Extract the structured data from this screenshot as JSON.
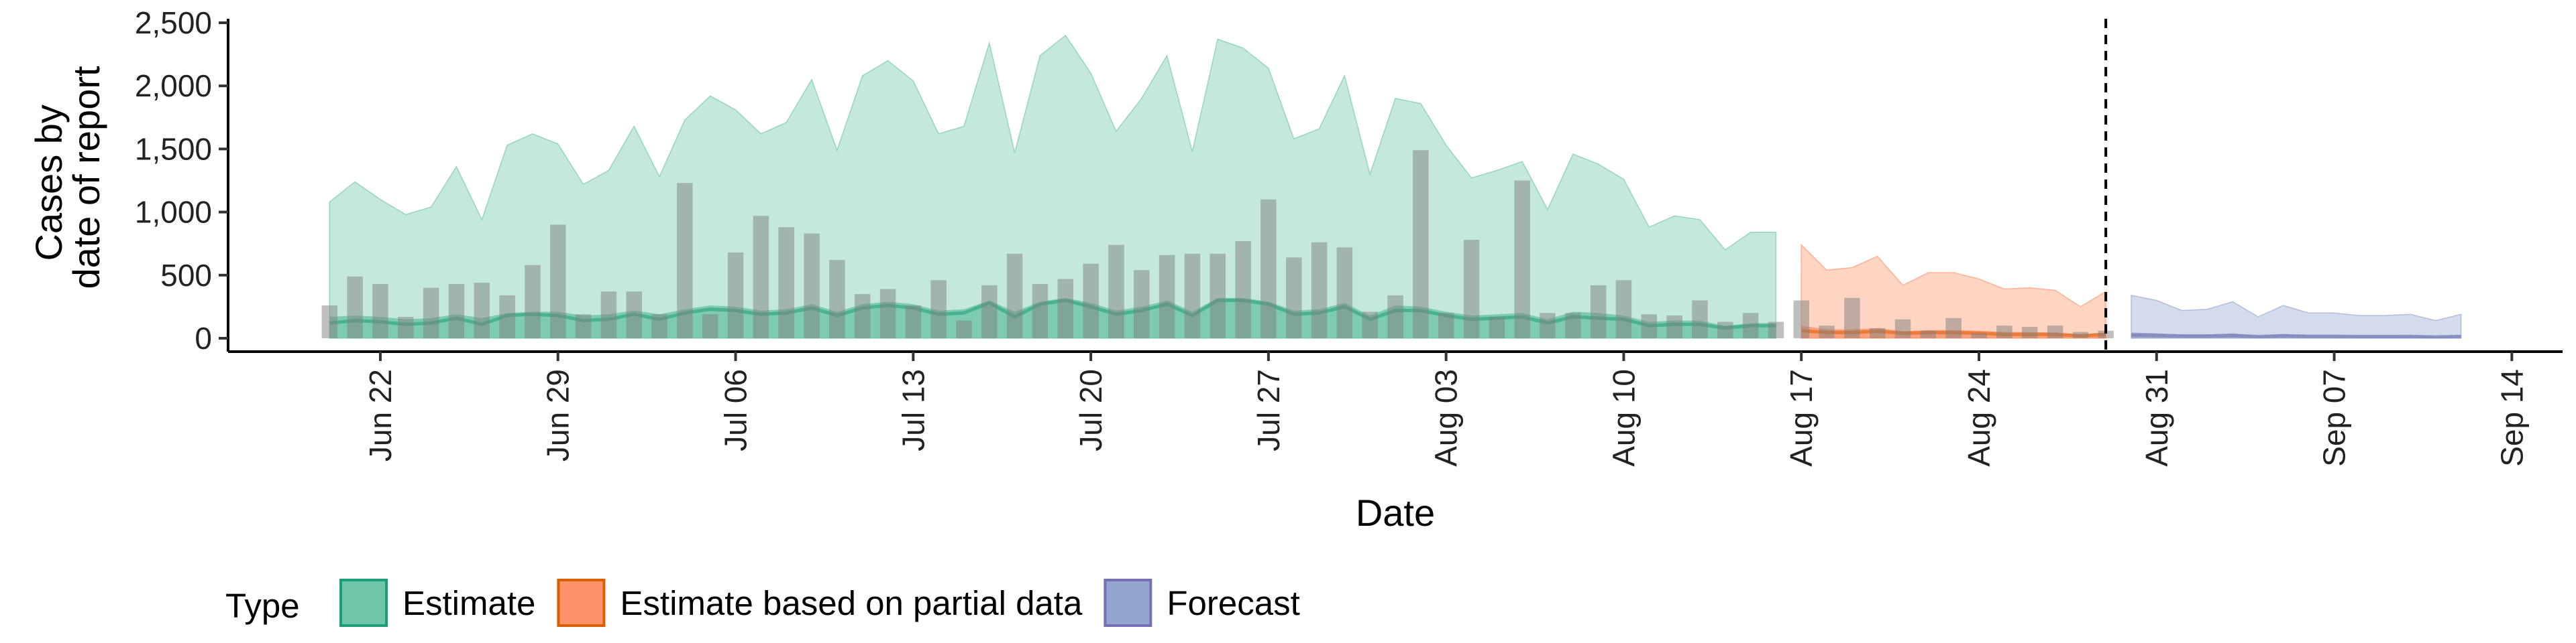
{
  "chart_data": {
    "type": "area",
    "xlabel": "Date",
    "ylabel": [
      "Cases by",
      "date of report"
    ],
    "ylim": [
      0,
      2500
    ],
    "xlim": [
      "2020-06-16",
      "2020-09-16"
    ],
    "y_ticks": [
      0,
      500,
      1000,
      1500,
      2000,
      2500
    ],
    "y_tick_labels": [
      "0",
      "500",
      "1,000",
      "1,500",
      "2,000",
      "2,500"
    ],
    "x_ticks": [
      "2020-06-22",
      "2020-06-29",
      "2020-07-06",
      "2020-07-13",
      "2020-07-20",
      "2020-07-27",
      "2020-08-03",
      "2020-08-10",
      "2020-08-17",
      "2020-08-24",
      "2020-08-31",
      "2020-09-07",
      "2020-09-14"
    ],
    "x_tick_labels": [
      "Jun 22",
      "Jun 29",
      "Jul 06",
      "Jul 13",
      "Jul 20",
      "Jul 27",
      "Aug 03",
      "Aug 10",
      "Aug 17",
      "Aug 24",
      "Aug 31",
      "Sep 07",
      "Sep 14"
    ],
    "grid": false,
    "legend": {
      "title": "Type",
      "position": "bottom",
      "items": [
        {
          "label": "Estimate",
          "fill": "#66c2a5",
          "border": "#1b9e77"
        },
        {
          "label": "Estimate based on partial data",
          "fill": "#fc8d62",
          "border": "#d95f02"
        },
        {
          "label": "Forecast",
          "fill": "#8da0cb",
          "border": "#7570b3"
        }
      ]
    },
    "vline": {
      "x": "2020-08-29",
      "style": "dashed"
    },
    "reported_cases": {
      "color": "#808080",
      "dates": [
        "2020-06-20",
        "2020-06-21",
        "2020-06-22",
        "2020-06-23",
        "2020-06-24",
        "2020-06-25",
        "2020-06-26",
        "2020-06-27",
        "2020-06-28",
        "2020-06-29",
        "2020-06-30",
        "2020-07-01",
        "2020-07-02",
        "2020-07-03",
        "2020-07-04",
        "2020-07-05",
        "2020-07-06",
        "2020-07-07",
        "2020-07-08",
        "2020-07-09",
        "2020-07-10",
        "2020-07-11",
        "2020-07-12",
        "2020-07-13",
        "2020-07-14",
        "2020-07-15",
        "2020-07-16",
        "2020-07-17",
        "2020-07-18",
        "2020-07-19",
        "2020-07-20",
        "2020-07-21",
        "2020-07-22",
        "2020-07-23",
        "2020-07-24",
        "2020-07-25",
        "2020-07-26",
        "2020-07-27",
        "2020-07-28",
        "2020-07-29",
        "2020-07-30",
        "2020-07-31",
        "2020-08-01",
        "2020-08-02",
        "2020-08-03",
        "2020-08-04",
        "2020-08-05",
        "2020-08-06",
        "2020-08-07",
        "2020-08-08",
        "2020-08-09",
        "2020-08-10",
        "2020-08-11",
        "2020-08-12",
        "2020-08-13",
        "2020-08-14",
        "2020-08-15",
        "2020-08-16",
        "2020-08-17",
        "2020-08-18",
        "2020-08-19",
        "2020-08-20",
        "2020-08-21",
        "2020-08-22",
        "2020-08-23",
        "2020-08-24",
        "2020-08-25",
        "2020-08-26",
        "2020-08-27",
        "2020-08-28",
        "2020-08-29"
      ],
      "values": [
        260,
        490,
        430,
        170,
        400,
        430,
        440,
        340,
        580,
        900,
        190,
        370,
        370,
        190,
        1230,
        190,
        680,
        970,
        880,
        830,
        620,
        350,
        390,
        260,
        460,
        140,
        420,
        670,
        430,
        470,
        590,
        740,
        540,
        660,
        670,
        670,
        770,
        1100,
        640,
        760,
        720,
        210,
        340,
        1490,
        200,
        780,
        170,
        1250,
        200,
        200,
        420,
        460,
        190,
        180,
        300,
        130,
        200,
        130,
        300,
        100,
        320,
        80,
        150,
        60,
        160,
        40,
        100,
        90,
        100,
        50,
        60
      ]
    },
    "series": [
      {
        "name": "Estimate",
        "fill": "#66c2a5",
        "line": "#1b9e77",
        "dates": [
          "2020-06-20",
          "2020-06-21",
          "2020-06-22",
          "2020-06-23",
          "2020-06-24",
          "2020-06-25",
          "2020-06-26",
          "2020-06-27",
          "2020-06-28",
          "2020-06-29",
          "2020-06-30",
          "2020-07-01",
          "2020-07-02",
          "2020-07-03",
          "2020-07-04",
          "2020-07-05",
          "2020-07-06",
          "2020-07-07",
          "2020-07-08",
          "2020-07-09",
          "2020-07-10",
          "2020-07-11",
          "2020-07-12",
          "2020-07-13",
          "2020-07-14",
          "2020-07-15",
          "2020-07-16",
          "2020-07-17",
          "2020-07-18",
          "2020-07-19",
          "2020-07-20",
          "2020-07-21",
          "2020-07-22",
          "2020-07-23",
          "2020-07-24",
          "2020-07-25",
          "2020-07-26",
          "2020-07-27",
          "2020-07-28",
          "2020-07-29",
          "2020-07-30",
          "2020-07-31",
          "2020-08-01",
          "2020-08-02",
          "2020-08-03",
          "2020-08-04",
          "2020-08-05",
          "2020-08-06",
          "2020-08-07",
          "2020-08-08",
          "2020-08-09",
          "2020-08-10",
          "2020-08-11",
          "2020-08-12",
          "2020-08-13",
          "2020-08-14",
          "2020-08-15",
          "2020-08-16"
        ],
        "upper": [
          1080,
          1240,
          1100,
          980,
          1040,
          1360,
          940,
          1530,
          1620,
          1540,
          1220,
          1330,
          1680,
          1280,
          1730,
          1920,
          1810,
          1620,
          1710,
          2050,
          1490,
          2080,
          2200,
          2040,
          1620,
          1680,
          2340,
          1470,
          2240,
          2400,
          2100,
          1640,
          1900,
          2240,
          1480,
          2370,
          2300,
          2140,
          1580,
          1660,
          2080,
          1300,
          1900,
          1860,
          1530,
          1270,
          1330,
          1400,
          1020,
          1460,
          1380,
          1260,
          880,
          970,
          940,
          700,
          840,
          840
        ],
        "lower": [
          170,
          180,
          170,
          150,
          160,
          190,
          160,
          200,
          210,
          210,
          180,
          190,
          220,
          190,
          230,
          260,
          250,
          220,
          230,
          270,
          210,
          270,
          290,
          270,
          220,
          230,
          300,
          210,
          290,
          320,
          280,
          220,
          250,
          300,
          210,
          320,
          320,
          290,
          220,
          230,
          280,
          180,
          260,
          250,
          210,
          180,
          190,
          200,
          150,
          210,
          200,
          180,
          130,
          140,
          140,
          100,
          120,
          120
        ],
        "median": [
          120,
          140,
          130,
          110,
          120,
          160,
          110,
          180,
          190,
          180,
          140,
          150,
          190,
          150,
          200,
          230,
          220,
          190,
          200,
          240,
          180,
          240,
          260,
          240,
          190,
          200,
          280,
          170,
          270,
          300,
          250,
          190,
          220,
          270,
          180,
          300,
          300,
          270,
          190,
          200,
          250,
          150,
          220,
          220,
          180,
          150,
          160,
          170,
          120,
          170,
          160,
          150,
          100,
          110,
          110,
          80,
          100,
          100
        ]
      },
      {
        "name": "Estimate based on partial data",
        "fill": "#fc8d62",
        "line": "#d95f02",
        "dates": [
          "2020-08-17",
          "2020-08-18",
          "2020-08-19",
          "2020-08-20",
          "2020-08-21",
          "2020-08-22",
          "2020-08-23",
          "2020-08-24",
          "2020-08-25",
          "2020-08-26",
          "2020-08-27",
          "2020-08-28",
          "2020-08-29"
        ],
        "upper": [
          740,
          540,
          560,
          650,
          420,
          520,
          520,
          470,
          390,
          400,
          380,
          250,
          370
        ],
        "lower": [
          100,
          70,
          70,
          80,
          55,
          65,
          65,
          60,
          50,
          50,
          45,
          30,
          45
        ],
        "median": [
          60,
          45,
          45,
          55,
          40,
          45,
          45,
          40,
          30,
          30,
          30,
          20,
          30
        ]
      },
      {
        "name": "Forecast",
        "fill": "#8da0cb",
        "line": "#7570b3",
        "dates": [
          "2020-08-30",
          "2020-08-31",
          "2020-09-01",
          "2020-09-02",
          "2020-09-03",
          "2020-09-04",
          "2020-09-05",
          "2020-09-06",
          "2020-09-07",
          "2020-09-08",
          "2020-09-09",
          "2020-09-10",
          "2020-09-11",
          "2020-09-12"
        ],
        "upper": [
          340,
          300,
          220,
          230,
          290,
          170,
          260,
          200,
          200,
          180,
          180,
          190,
          140,
          190
        ],
        "lower": [
          45,
          40,
          30,
          30,
          38,
          22,
          34,
          26,
          26,
          24,
          24,
          25,
          18,
          25
        ],
        "median": [
          25,
          22,
          18,
          18,
          22,
          14,
          20,
          16,
          16,
          14,
          14,
          15,
          11,
          15
        ]
      }
    ]
  }
}
